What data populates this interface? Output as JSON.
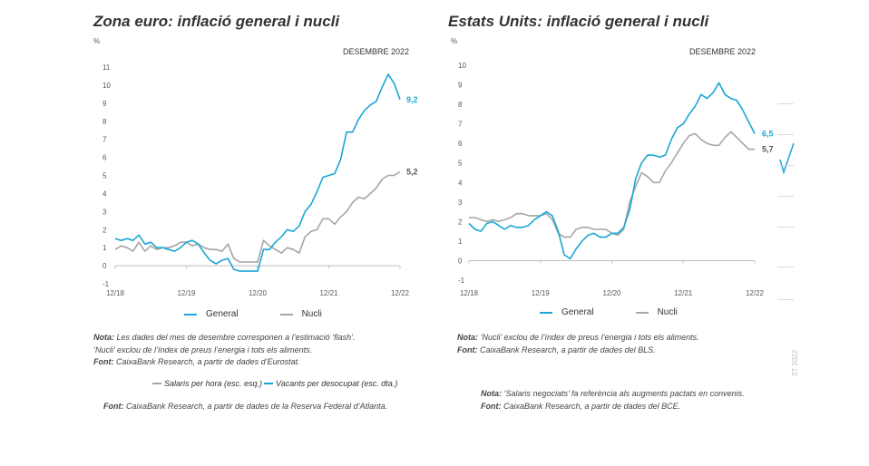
{
  "panels": [
    {
      "title": "Zona euro: inflació general i nucli"
    },
    {
      "title": "Estats Units: inflació general i nucli"
    }
  ],
  "chart_data": [
    {
      "type": "line",
      "ylabel": "%",
      "subtitle": "DESEMBRE 2022",
      "ylim": [
        -1,
        11
      ],
      "yticks": [
        -1,
        0,
        1,
        2,
        3,
        4,
        5,
        6,
        7,
        8,
        9,
        10,
        11
      ],
      "xticks": [
        "12/18",
        "12/19",
        "12/20",
        "12/21",
        "12/22"
      ],
      "x_start": "2018-12",
      "x_end": "2022-12",
      "series": [
        {
          "name": "General",
          "color": "#1aa7d6",
          "end_label": "9,2",
          "values": [
            1.5,
            1.4,
            1.5,
            1.4,
            1.7,
            1.2,
            1.3,
            1.0,
            1.0,
            0.9,
            0.8,
            1.0,
            1.3,
            1.4,
            1.2,
            0.7,
            0.3,
            0.1,
            0.3,
            0.4,
            -0.2,
            -0.3,
            -0.3,
            -0.3,
            -0.3,
            0.9,
            0.9,
            1.3,
            1.6,
            2.0,
            1.9,
            2.2,
            3.0,
            3.4,
            4.1,
            4.9,
            5.0,
            5.1,
            5.9,
            7.4,
            7.4,
            8.1,
            8.6,
            8.9,
            9.1,
            9.9,
            10.6,
            10.1,
            9.2
          ]
        },
        {
          "name": "Nucli",
          "color": "#a6a6a6",
          "end_label": "5,2",
          "values": [
            0.9,
            1.1,
            1.0,
            0.8,
            1.3,
            0.8,
            1.1,
            0.9,
            1.0,
            1.0,
            1.1,
            1.3,
            1.3,
            1.1,
            1.2,
            1.0,
            0.9,
            0.9,
            0.8,
            1.2,
            0.4,
            0.2,
            0.2,
            0.2,
            0.2,
            1.4,
            1.1,
            0.9,
            0.7,
            1.0,
            0.9,
            0.7,
            1.6,
            1.9,
            2.0,
            2.6,
            2.6,
            2.3,
            2.7,
            3.0,
            3.5,
            3.8,
            3.7,
            4.0,
            4.3,
            4.8,
            5.0,
            5.0,
            5.2
          ]
        }
      ]
    },
    {
      "type": "line",
      "ylabel": "%",
      "subtitle": "DESEMBRE 2022",
      "ylim": [
        -1,
        10
      ],
      "yticks": [
        -1,
        0,
        1,
        2,
        3,
        4,
        5,
        6,
        7,
        8,
        9,
        10
      ],
      "xticks": [
        "12/18",
        "12/19",
        "12/20",
        "12/21",
        "12/22"
      ],
      "x_start": "2018-12",
      "x_end": "2022-12",
      "series": [
        {
          "name": "General",
          "color": "#1aa7d6",
          "end_label": "6,5",
          "values": [
            1.9,
            1.6,
            1.5,
            1.9,
            2.0,
            1.8,
            1.6,
            1.8,
            1.7,
            1.7,
            1.8,
            2.1,
            2.3,
            2.5,
            2.3,
            1.5,
            0.3,
            0.1,
            0.6,
            1.0,
            1.3,
            1.4,
            1.2,
            1.2,
            1.4,
            1.4,
            1.7,
            2.6,
            4.2,
            5.0,
            5.4,
            5.4,
            5.3,
            5.4,
            6.2,
            6.8,
            7.0,
            7.5,
            7.9,
            8.5,
            8.3,
            8.6,
            9.1,
            8.5,
            8.3,
            8.2,
            7.7,
            7.1,
            6.5
          ]
        },
        {
          "name": "Nucli",
          "color": "#a6a6a6",
          "end_label": "5,7",
          "values": [
            2.2,
            2.2,
            2.1,
            2.0,
            2.1,
            2.0,
            2.1,
            2.2,
            2.4,
            2.4,
            2.3,
            2.3,
            2.3,
            2.4,
            2.1,
            1.4,
            1.2,
            1.2,
            1.6,
            1.7,
            1.7,
            1.6,
            1.6,
            1.6,
            1.4,
            1.3,
            1.6,
            3.0,
            3.8,
            4.5,
            4.3,
            4.0,
            4.0,
            4.6,
            5.0,
            5.5,
            6.0,
            6.4,
            6.5,
            6.2,
            6.0,
            5.9,
            5.9,
            6.3,
            6.6,
            6.3,
            6.0,
            5.7,
            5.7
          ]
        }
      ]
    }
  ],
  "legend": {
    "general": "General",
    "nucli": "Nucli"
  },
  "notes": {
    "left_nota_label": "Nota:",
    "left_nota_text": " Les dades del mes de desembre corresponen a l’estimació ‘flash’.",
    "left_line2": "‘Nucli’ exclou de l’índex de preus l’energia i tots els aliments.",
    "left_font_label": "Font:",
    "left_font_text": " CaixaBank Research, a partir de dades d’Eurostat.",
    "right_nota_label": "Nota:",
    "right_nota_text": " ‘Nucli’ exclou de l’índex de preus l’energia i tots els aliments.",
    "right_font_label": "Font:",
    "right_font_text": " CaixaBank Research, a partir de dades del BLS.",
    "salaris_legend": "Salaris per hora (esc. esq.)",
    "vacants_legend": "Vacants per desocupat (esc. dta.)",
    "atlanta_font_label": "Font:",
    "atlanta_font_text": " CaixaBank Research, a partir de dades de la Reserva Federal d’Atlanta.",
    "bce_nota_label": "Nota:",
    "bce_nota_text": " ‘Salaris negociats’ fa referència als augments pactats en convenis.",
    "bce_font_label": "Font:",
    "bce_font_text": " CaixaBank Research, a partir de dades del BCE."
  },
  "side_label": "3T 2022",
  "colors": {
    "general": "#1aa7d6",
    "nucli": "#a6a6a6"
  }
}
